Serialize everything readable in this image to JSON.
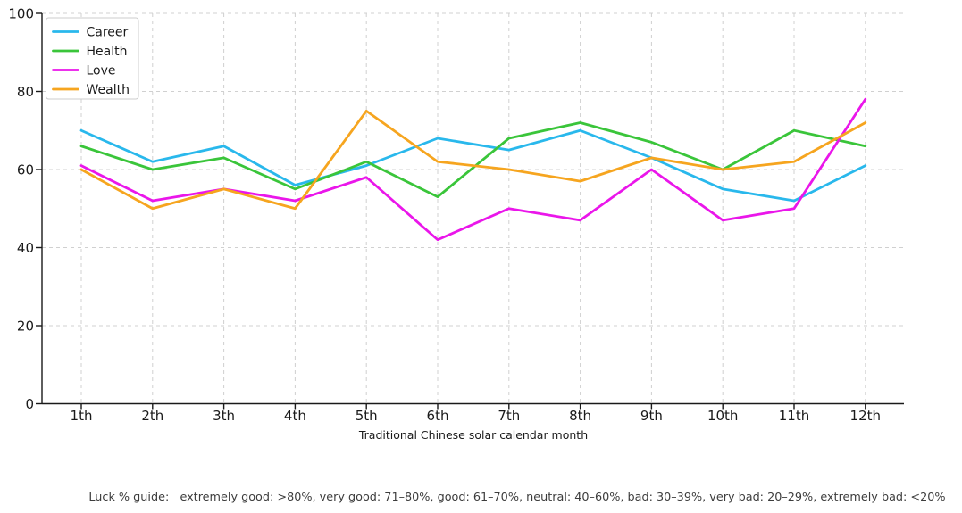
{
  "chart_data": {
    "type": "line",
    "title": "",
    "xlabel": "Traditional Chinese solar calendar month",
    "ylabel": "",
    "categories": [
      "1th",
      "2th",
      "3th",
      "4th",
      "5th",
      "6th",
      "7th",
      "8th",
      "9th",
      "10th",
      "11th",
      "12th"
    ],
    "yticks": [
      0,
      20,
      40,
      60,
      80,
      100
    ],
    "ylim": [
      0,
      100
    ],
    "grid": "dashed, both axes",
    "legend_position": "upper-left",
    "series": [
      {
        "name": "Career",
        "color": "#29b8ec",
        "values": [
          70,
          62,
          66,
          56,
          61,
          68,
          65,
          70,
          63,
          55,
          52,
          61
        ]
      },
      {
        "name": "Health",
        "color": "#3ac53a",
        "values": [
          66,
          60,
          63,
          55,
          62,
          53,
          68,
          72,
          67,
          60,
          70,
          66
        ]
      },
      {
        "name": "Love",
        "color": "#ea16ea",
        "values": [
          61,
          52,
          55,
          52,
          58,
          42,
          50,
          47,
          60,
          47,
          50,
          78
        ]
      },
      {
        "name": "Wealth",
        "color": "#f6a51f",
        "values": [
          60,
          50,
          55,
          50,
          75,
          62,
          60,
          57,
          63,
          60,
          62,
          72
        ]
      }
    ]
  },
  "footer": {
    "text": "Luck % guide:   extremely good: >80%, very good: 71–80%, good: 61–70%, neutral: 40–60%, bad: 30–39%, very bad: 20–29%, extremely bad: <20%"
  },
  "style": {
    "grid_color": "#d0d0d0",
    "spine_color": "#1a1a1a",
    "legend_border_color": "#cccccc",
    "background": "#ffffff"
  }
}
